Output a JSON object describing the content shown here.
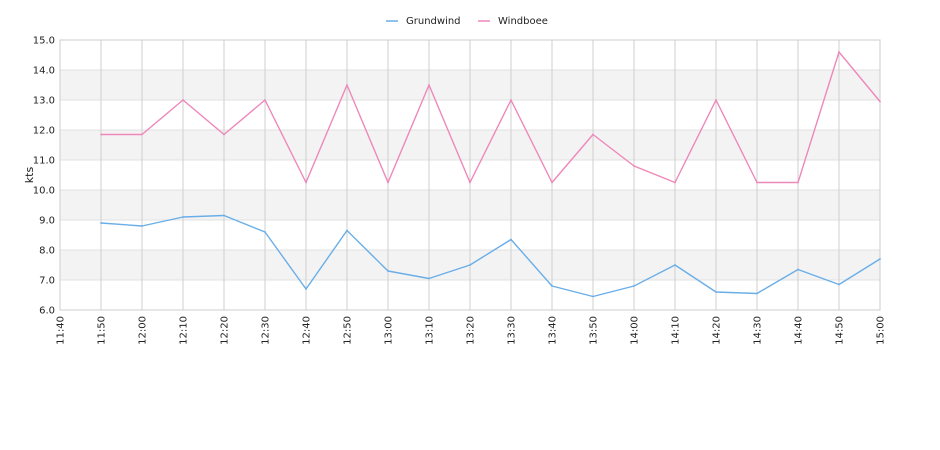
{
  "chart_data": {
    "type": "line",
    "ylabel": "kts",
    "xlabel": "",
    "title": "",
    "ylim": [
      6.0,
      15.0
    ],
    "y_ticks": [
      "6.0",
      "7.0",
      "8.0",
      "9.0",
      "10.0",
      "11.0",
      "12.0",
      "13.0",
      "14.0",
      "15.0"
    ],
    "x_ticks": [
      "11:40",
      "11:50",
      "12:00",
      "12:10",
      "12:20",
      "12:30",
      "12:40",
      "12:50",
      "13:00",
      "13:10",
      "13:20",
      "13:30",
      "13:40",
      "13:50",
      "14:00",
      "14:10",
      "14:20",
      "14:30",
      "14:40",
      "14:50",
      "15:00"
    ],
    "grid": true,
    "legend_position": "top-center",
    "series": [
      {
        "name": "Grundwind",
        "color": "#6aaee8",
        "x": [
          "11:50",
          "12:00",
          "12:10",
          "12:20",
          "12:30",
          "12:40",
          "12:50",
          "13:00",
          "13:10",
          "13:20",
          "13:30",
          "13:40",
          "13:50",
          "14:00",
          "14:10",
          "14:20",
          "14:30",
          "14:40",
          "14:50",
          "15:00"
        ],
        "values": [
          8.9,
          8.8,
          9.1,
          9.15,
          8.6,
          6.7,
          8.65,
          7.3,
          7.05,
          7.5,
          8.35,
          6.8,
          6.45,
          6.8,
          7.5,
          6.6,
          6.55,
          7.35,
          6.85,
          7.7
        ]
      },
      {
        "name": "Windboee",
        "color": "#ee88bb",
        "x": [
          "11:50",
          "12:00",
          "12:10",
          "12:20",
          "12:30",
          "12:40",
          "12:50",
          "13:00",
          "13:10",
          "13:20",
          "13:30",
          "13:40",
          "13:50",
          "14:00",
          "14:10",
          "14:20",
          "14:30",
          "14:40",
          "14:50",
          "15:00"
        ],
        "values": [
          11.85,
          11.85,
          13.0,
          11.85,
          13.0,
          10.25,
          13.5,
          10.25,
          13.5,
          10.25,
          13.0,
          10.25,
          11.85,
          10.8,
          10.25,
          13.0,
          10.25,
          10.25,
          14.6,
          12.95
        ]
      }
    ]
  }
}
